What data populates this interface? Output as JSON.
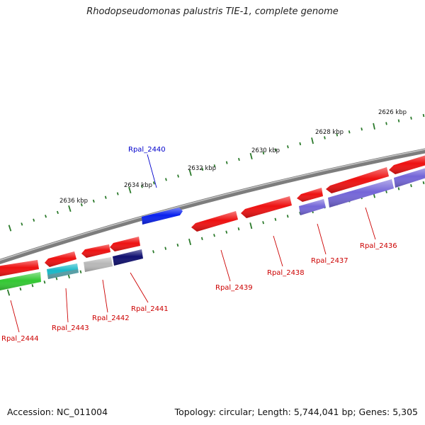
{
  "title": "Rhodopseudomonas palustris TIE-1, complete genome",
  "footer": {
    "accession": "Accession: NC_011004",
    "topology": "Topology: circular; Length: 5,744,041 bp; Genes: 5,305"
  },
  "colors": {
    "backbone": "#7d7d7d",
    "tick": "#2b7a2b",
    "red_gene": "#ee1111",
    "blue_gene": "#0a22ee",
    "purple_gene": "#7466d8",
    "navy_gene": "#101070",
    "grey_gene": "#b8b8b8",
    "cyan_gene": "#18b8c8",
    "green_gene": "#33c833",
    "label_red": "#cc0000",
    "label_blue": "#0000cc"
  },
  "kbp_labels": [
    "2626 kbp",
    "2628 kbp",
    "2630 kbp",
    "2632 kbp",
    "2634 kbp",
    "2636 kbp"
  ],
  "gene_labels": [
    "Rpal_2436",
    "Rpal_2437",
    "Rpal_2438",
    "Rpal_2439",
    "Rpal_2440",
    "Rpal_2441",
    "Rpal_2442",
    "Rpal_2443",
    "Rpal_2444"
  ]
}
